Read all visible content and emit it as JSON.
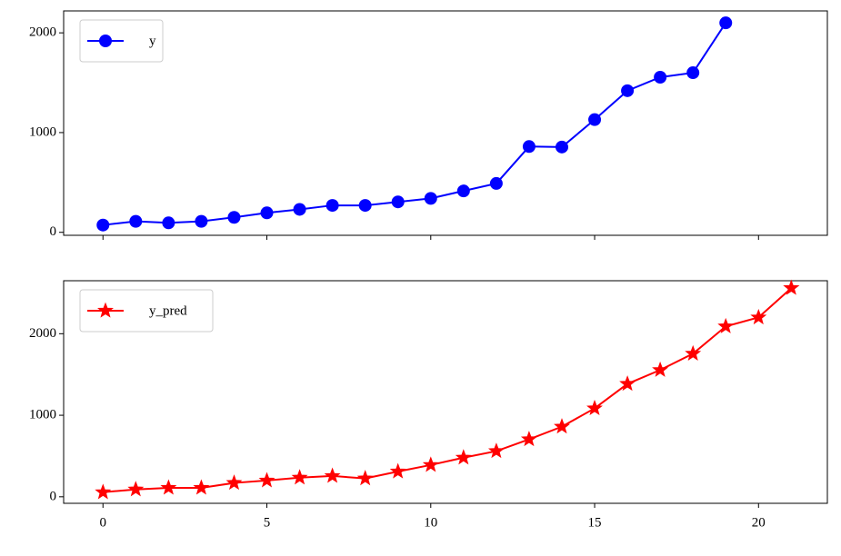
{
  "chart_data": [
    {
      "type": "line",
      "legend": "upper left",
      "marker": "o",
      "x": [
        0,
        1,
        2,
        3,
        4,
        5,
        6,
        7,
        8,
        9,
        10,
        11,
        12,
        13,
        14,
        15,
        16,
        17,
        18,
        19
      ],
      "series": [
        {
          "name": "y",
          "color": "#0000ff",
          "values": [
            73,
            110,
            95,
            110,
            150,
            195,
            230,
            270,
            270,
            305,
            340,
            415,
            490,
            860,
            855,
            1130,
            1420,
            1555,
            1600,
            2100
          ]
        }
      ],
      "xlim": [
        -1.2,
        22.1
      ],
      "ylim": [
        -30,
        2220
      ],
      "yticks": [
        0,
        1000,
        2000
      ]
    },
    {
      "type": "line",
      "legend": "upper left",
      "marker": "*",
      "x": [
        0,
        1,
        2,
        3,
        4,
        5,
        6,
        7,
        8,
        9,
        10,
        11,
        12,
        13,
        14,
        15,
        16,
        17,
        18,
        19,
        20,
        21
      ],
      "series": [
        {
          "name": "y_pred",
          "color": "#ff0000",
          "values": [
            56,
            90,
            110,
            110,
            170,
            200,
            235,
            255,
            225,
            310,
            390,
            480,
            560,
            705,
            860,
            1085,
            1385,
            1555,
            1755,
            2090,
            2200,
            2560
          ]
        }
      ],
      "xlim": [
        -1.2,
        22.1
      ],
      "ylim": [
        -80,
        2650
      ],
      "yticks": [
        0,
        1000,
        2000
      ],
      "xticks": [
        0,
        5,
        10,
        15,
        20
      ]
    }
  ]
}
